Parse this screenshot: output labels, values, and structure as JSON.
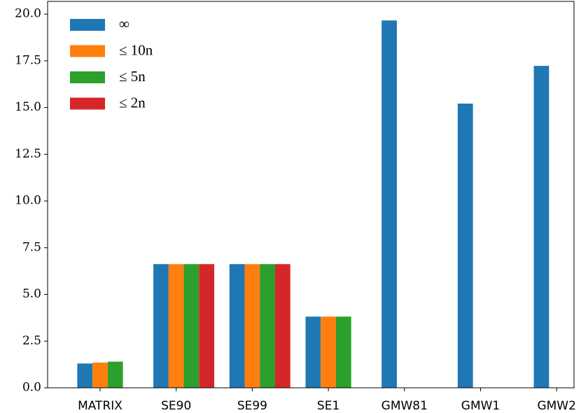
{
  "chart_data": {
    "type": "bar",
    "categories": [
      "MATRIX",
      "SE90",
      "SE99",
      "SE1",
      "GMW81",
      "GMW1",
      "GMW2"
    ],
    "series": [
      {
        "name": "∞",
        "color": "#1f77b4",
        "values": [
          1.3,
          6.62,
          6.62,
          3.81,
          19.66,
          15.21,
          17.23
        ]
      },
      {
        "name": "≤ 10n",
        "color": "#ff7f0e",
        "values": [
          1.35,
          6.62,
          6.62,
          3.81,
          null,
          null,
          null
        ]
      },
      {
        "name": "≤ 5n",
        "color": "#2ca02c",
        "values": [
          1.4,
          6.62,
          6.62,
          3.81,
          null,
          null,
          null
        ]
      },
      {
        "name": "≤ 2n",
        "color": "#d62728",
        "values": [
          null,
          6.62,
          6.62,
          null,
          null,
          null,
          null
        ]
      }
    ],
    "ylim": [
      0,
      20.68
    ],
    "yticks": [
      {
        "value": 0,
        "label": "0.0"
      },
      {
        "value": 2.5,
        "label": "2.5"
      },
      {
        "value": 5,
        "label": "5.0"
      },
      {
        "value": 7.5,
        "label": "7.5"
      },
      {
        "value": 10,
        "label": "10.0"
      },
      {
        "value": 12.5,
        "label": "12.5"
      },
      {
        "value": 15,
        "label": "15.0"
      },
      {
        "value": 17.5,
        "label": "17.5"
      },
      {
        "value": 20,
        "label": "20.0"
      }
    ],
    "legend": "upper left",
    "grid": false
  }
}
